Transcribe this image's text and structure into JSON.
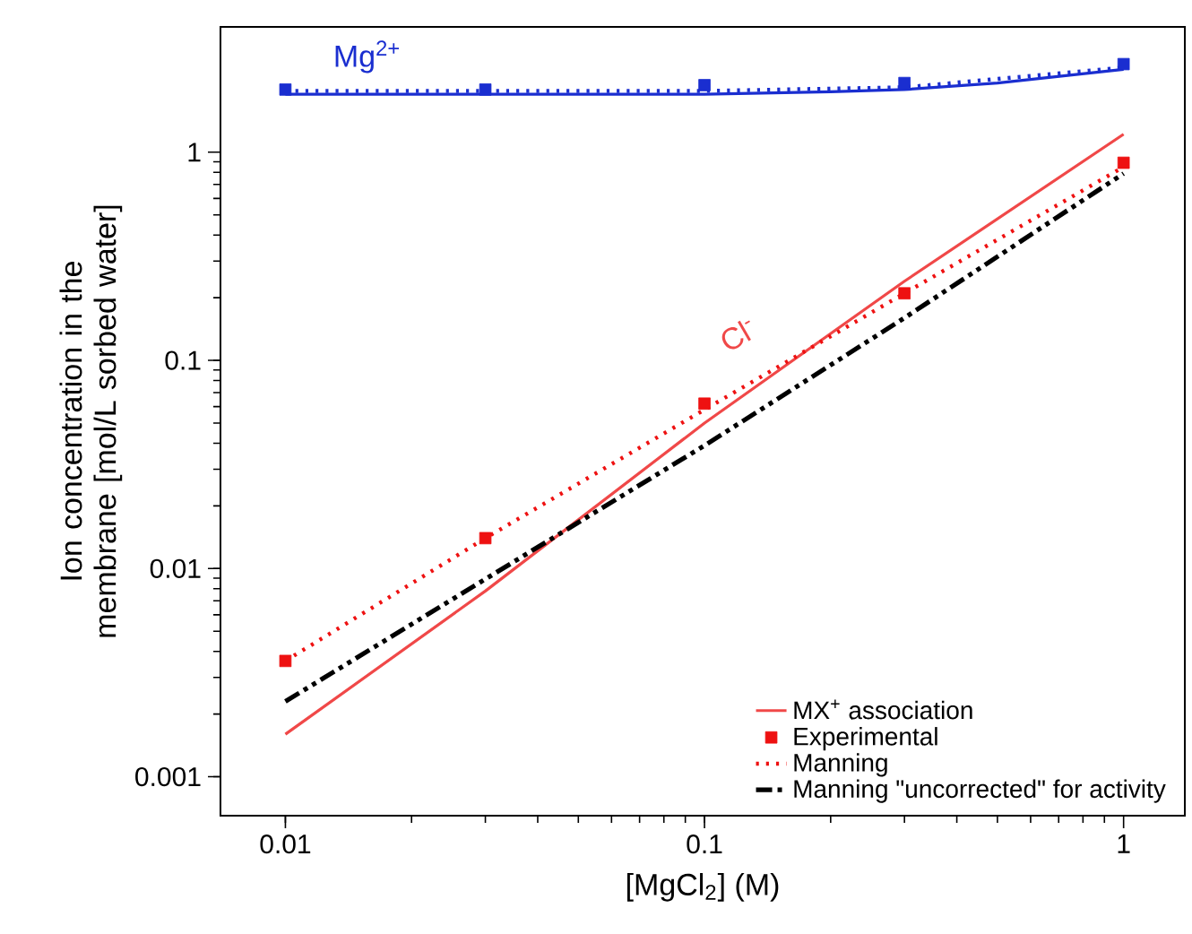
{
  "chart_data": {
    "type": "line",
    "xlabel": "[MgCl$_{2}$] (M)",
    "ylabel": "Ion concentration in the membrane [mol/L sorbed water]",
    "log": "xy",
    "xlim": [
      0.007,
      1.4
    ],
    "ylim": [
      0.00065,
      4
    ],
    "xticks": [
      0.01,
      0.1,
      1
    ],
    "yticks": [
      0.001,
      0.01,
      0.1,
      1
    ],
    "grid": false,
    "legend": "bottom right",
    "annotations": [
      "Mg$^{2+}$",
      "Cl$^{-}$"
    ],
    "series": [
      {
        "name": "MX$^{+}$ association",
        "line_style": "solid",
        "marker": "none",
        "color": "#f04848",
        "x": [
          0.01,
          0.03,
          0.1,
          0.3,
          1
        ],
        "values": [
          0.0016,
          0.0078,
          0.05,
          0.24,
          1.22
        ]
      },
      {
        "name": "Experimental",
        "type": "scatter",
        "marker": "square",
        "color": "#ee1111",
        "x": [
          0.01,
          0.03,
          0.1,
          0.3,
          1
        ],
        "values": [
          0.0036,
          0.014,
          0.062,
          0.21,
          0.89
        ]
      },
      {
        "name": "Manning",
        "line_style": "dotted",
        "marker": "none",
        "color": "#ee1111",
        "x": [
          0.01,
          0.03,
          0.1,
          0.3,
          1
        ],
        "values": [
          0.0036,
          0.014,
          0.058,
          0.21,
          0.85
        ]
      },
      {
        "name": "Manning \"uncorrected\" for activity",
        "line_style": "dashdot",
        "marker": "none",
        "color": "#000000",
        "x": [
          0.01,
          0.03,
          0.1,
          0.3,
          1
        ],
        "values": [
          0.0023,
          0.0089,
          0.039,
          0.16,
          0.79
        ]
      },
      {
        "line_style": "solid",
        "marker": "none",
        "color": "#1a2ed0",
        "x": [
          0.01,
          0.03,
          0.1,
          0.2,
          0.3,
          0.5,
          1
        ],
        "values": [
          1.9,
          1.9,
          1.9,
          1.95,
          2.0,
          2.15,
          2.5
        ]
      },
      {
        "line_style": "dotted",
        "marker": "none",
        "color": "#1a2ed0",
        "x": [
          0.01,
          0.03,
          0.1,
          0.3,
          1
        ],
        "values": [
          1.97,
          1.97,
          1.97,
          2.05,
          2.55
        ]
      },
      {
        "type": "scatter",
        "marker": "square",
        "color": "#1a2ed0",
        "x": [
          0.01,
          0.03,
          0.1,
          0.3,
          1
        ],
        "values": [
          2.0,
          2.0,
          2.1,
          2.15,
          2.65
        ]
      }
    ]
  }
}
